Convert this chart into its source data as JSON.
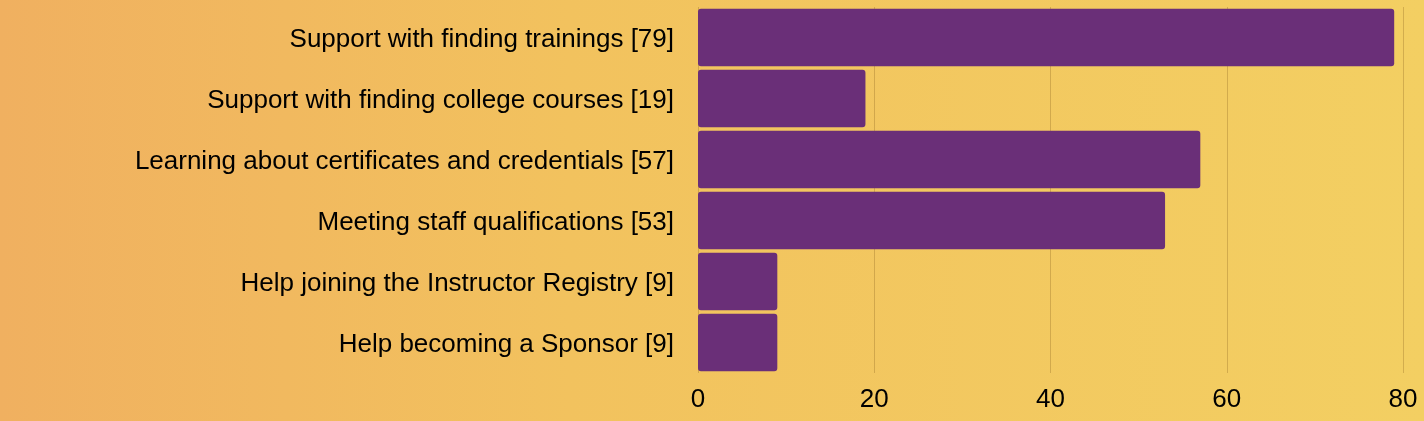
{
  "chart_data": {
    "type": "bar",
    "orientation": "horizontal",
    "categories": [
      "Support with finding trainings [79]",
      "Support with finding college courses [19]",
      "Learning about certificates and credentials [57]",
      "Meeting staff qualifications [53]",
      "Help joining the Instructor Registry [9]",
      "Help becoming a Sponsor [9]"
    ],
    "values": [
      79,
      19,
      57,
      53,
      9,
      9
    ],
    "color": "#6a2f78",
    "xlim": [
      0,
      80
    ],
    "xticks": [
      0,
      20,
      40,
      60,
      80
    ],
    "grid": "x"
  }
}
